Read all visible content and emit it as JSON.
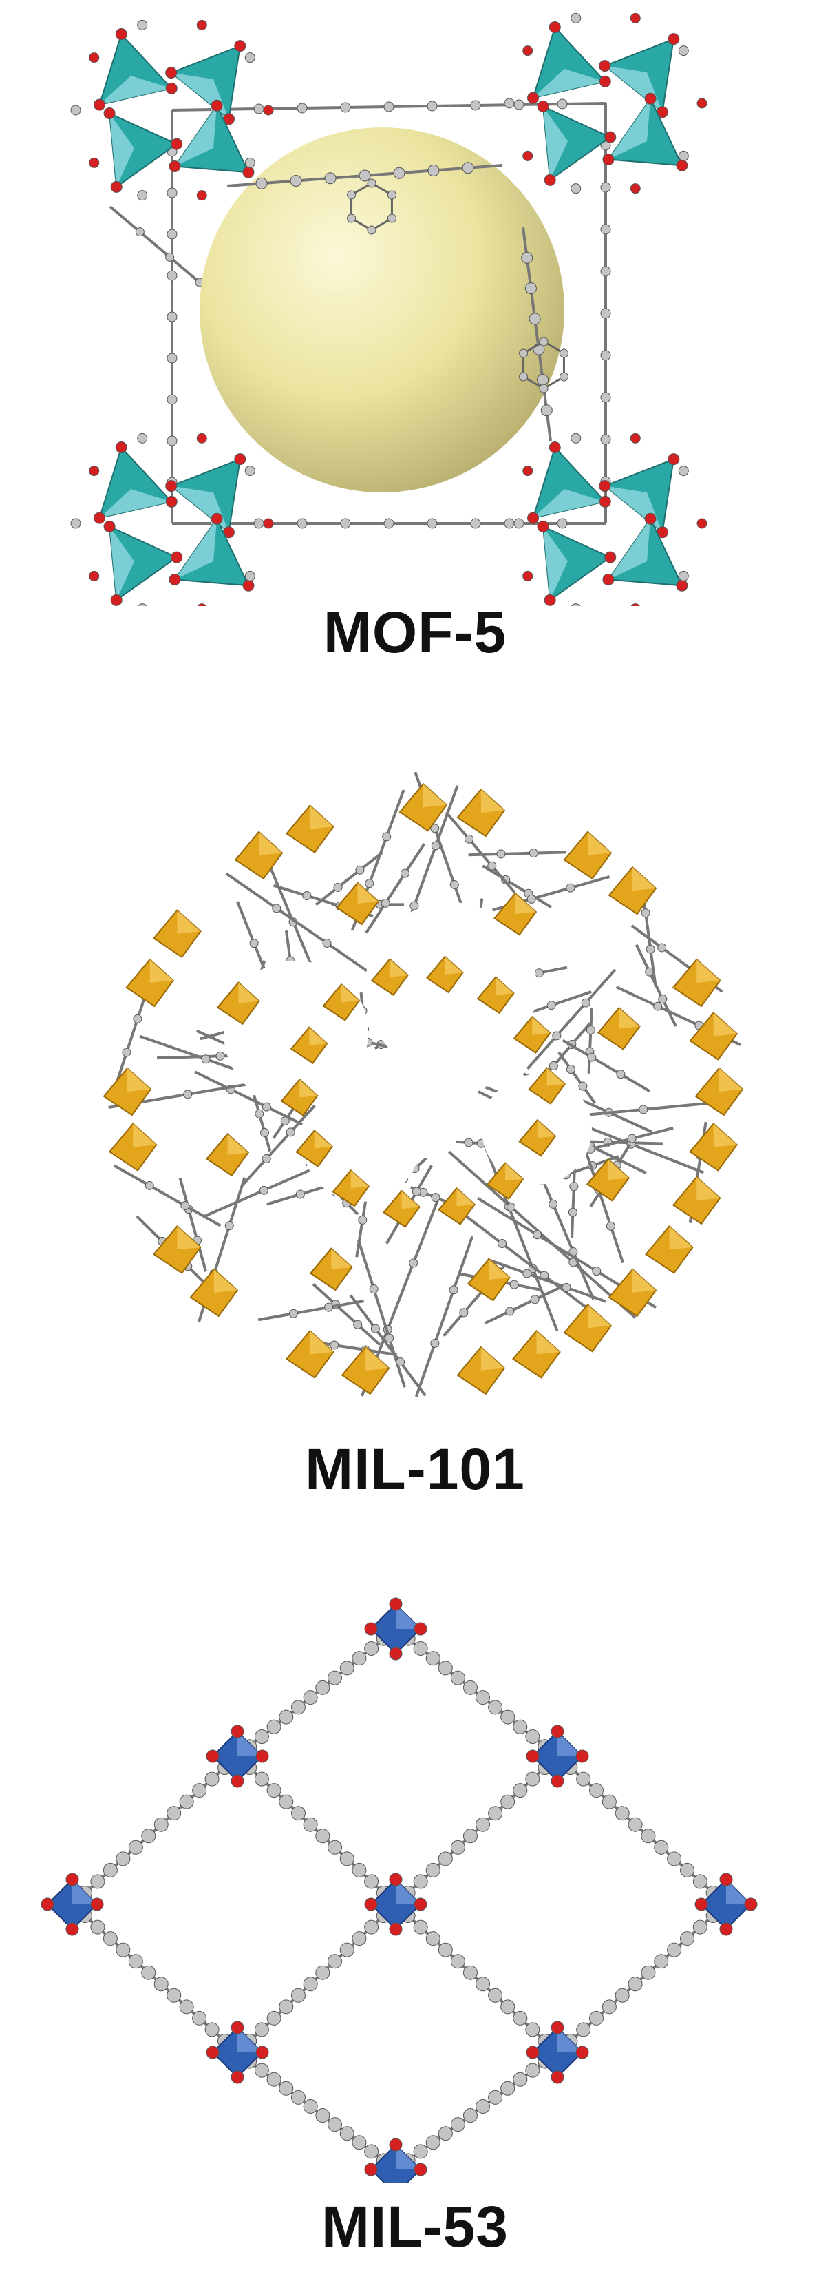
{
  "structures": [
    {
      "id": "mof5",
      "label": "MOF-5"
    },
    {
      "id": "mil101",
      "label": "MIL-101"
    },
    {
      "id": "mil53",
      "label": "MIL-53"
    }
  ],
  "colors": {
    "mof5_polyhedra": "#2aa8a6",
    "mof5_polyhedra_light": "#8ad6dc",
    "mof5_cavity_sphere": "#efe9a8",
    "mil101_polyhedra": "#e3a51c",
    "mil53_polyhedra": "#2f5fb3",
    "oxygen_atoms": "#d42020",
    "carbon_atoms": "#c4c4c4",
    "label_text": "#111111"
  }
}
